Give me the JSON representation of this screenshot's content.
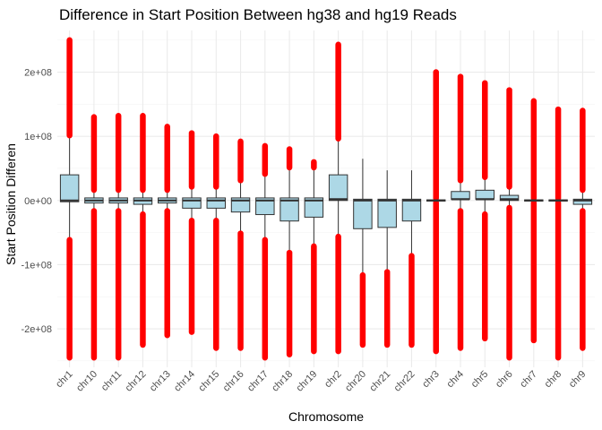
{
  "chart_data": {
    "type": "boxplot",
    "title": "Difference in Start Position Between hg38 and hg19 Reads",
    "xlabel": "Chromosome",
    "ylabel": "Start Position Differen",
    "ylim": [
      -260000000,
      265000000
    ],
    "yticks": [
      -200000000,
      -100000000,
      0,
      100000000,
      200000000
    ],
    "ytick_labels": [
      "-2e+08",
      "-1e+08",
      "0e+00",
      "1e+08",
      "2e+08"
    ],
    "grid": true,
    "box_fill": "#add8e6",
    "box_stroke": "#333333",
    "outlier_color": "#ff0000",
    "categories": [
      "chr1",
      "chr10",
      "chr11",
      "chr12",
      "chr13",
      "chr14",
      "chr15",
      "chr16",
      "chr17",
      "chr18",
      "chr19",
      "chr2",
      "chr20",
      "chr21",
      "chr22",
      "chr3",
      "chr4",
      "chr5",
      "chr6",
      "chr7",
      "chr8",
      "chr9"
    ],
    "boxes": [
      {
        "q1": -2000000,
        "median": 0,
        "q3": 40000000,
        "whisker_low": -60000000,
        "whisker_high": 100000000,
        "outlier_low": -245000000,
        "outlier_high": 250000000
      },
      {
        "q1": -4000000,
        "median": 0,
        "q3": 4000000,
        "whisker_low": -15000000,
        "whisker_high": 15000000,
        "outlier_low": -245000000,
        "outlier_high": 130000000
      },
      {
        "q1": -4000000,
        "median": 0,
        "q3": 4000000,
        "whisker_low": -15000000,
        "whisker_high": 15000000,
        "outlier_low": -245000000,
        "outlier_high": 132000000
      },
      {
        "q1": -6000000,
        "median": 0,
        "q3": 4000000,
        "whisker_low": -20000000,
        "whisker_high": 15000000,
        "outlier_low": -225000000,
        "outlier_high": 132000000
      },
      {
        "q1": -4000000,
        "median": 0,
        "q3": 4000000,
        "whisker_low": -15000000,
        "whisker_high": 15000000,
        "outlier_low": -210000000,
        "outlier_high": 115000000
      },
      {
        "q1": -12000000,
        "median": 0,
        "q3": 4000000,
        "whisker_low": -30000000,
        "whisker_high": 20000000,
        "outlier_low": -205000000,
        "outlier_high": 105000000
      },
      {
        "q1": -12000000,
        "median": 0,
        "q3": 4000000,
        "whisker_low": -30000000,
        "whisker_high": 20000000,
        "outlier_low": -230000000,
        "outlier_high": 100000000
      },
      {
        "q1": -18000000,
        "median": 0,
        "q3": 4000000,
        "whisker_low": -50000000,
        "whisker_high": 30000000,
        "outlier_low": -230000000,
        "outlier_high": 92000000
      },
      {
        "q1": -22000000,
        "median": 0,
        "q3": 4000000,
        "whisker_low": -60000000,
        "whisker_high": 40000000,
        "outlier_low": -245000000,
        "outlier_high": 85000000
      },
      {
        "q1": -32000000,
        "median": 0,
        "q3": 4000000,
        "whisker_low": -80000000,
        "whisker_high": 50000000,
        "outlier_low": -240000000,
        "outlier_high": 80000000
      },
      {
        "q1": -26000000,
        "median": 0,
        "q3": 4000000,
        "whisker_low": -70000000,
        "whisker_high": 50000000,
        "outlier_low": -235000000,
        "outlier_high": 60000000
      },
      {
        "q1": 0,
        "median": 2000000,
        "q3": 40000000,
        "whisker_low": -55000000,
        "whisker_high": 95000000,
        "outlier_low": -235000000,
        "outlier_high": 243000000
      },
      {
        "q1": -44000000,
        "median": 0,
        "q3": 2000000,
        "whisker_low": -115000000,
        "whisker_high": 65000000,
        "outlier_low": -225000000,
        "outlier_high": null
      },
      {
        "q1": -42000000,
        "median": 0,
        "q3": 2000000,
        "whisker_low": -110000000,
        "whisker_high": 47000000,
        "outlier_low": -225000000,
        "outlier_high": null
      },
      {
        "q1": -32000000,
        "median": 0,
        "q3": 2000000,
        "whisker_low": -85000000,
        "whisker_high": 47000000,
        "outlier_low": -225000000,
        "outlier_high": null
      },
      {
        "q1": -1000000,
        "median": 0,
        "q3": 1000000,
        "whisker_low": -2000000,
        "whisker_high": 2000000,
        "outlier_low": -235000000,
        "outlier_high": 200000000
      },
      {
        "q1": 2000000,
        "median": 2000000,
        "q3": 14000000,
        "whisker_low": -15000000,
        "whisker_high": 30000000,
        "outlier_low": -230000000,
        "outlier_high": 193000000
      },
      {
        "q1": 2000000,
        "median": 2000000,
        "q3": 16000000,
        "whisker_low": -20000000,
        "whisker_high": 35000000,
        "outlier_low": -215000000,
        "outlier_high": 183000000
      },
      {
        "q1": 0,
        "median": 2000000,
        "q3": 8000000,
        "whisker_low": -10000000,
        "whisker_high": 20000000,
        "outlier_low": -245000000,
        "outlier_high": 172000000
      },
      {
        "q1": -1000000,
        "median": 0,
        "q3": 1000000,
        "whisker_low": -2000000,
        "whisker_high": 2000000,
        "outlier_low": -218000000,
        "outlier_high": 155000000
      },
      {
        "q1": -1000000,
        "median": 0,
        "q3": 1000000,
        "whisker_low": -2000000,
        "whisker_high": 2000000,
        "outlier_low": -245000000,
        "outlier_high": 142000000
      },
      {
        "q1": -6000000,
        "median": 0,
        "q3": 2000000,
        "whisker_low": -15000000,
        "whisker_high": 15000000,
        "outlier_low": -230000000,
        "outlier_high": 140000000
      }
    ]
  }
}
